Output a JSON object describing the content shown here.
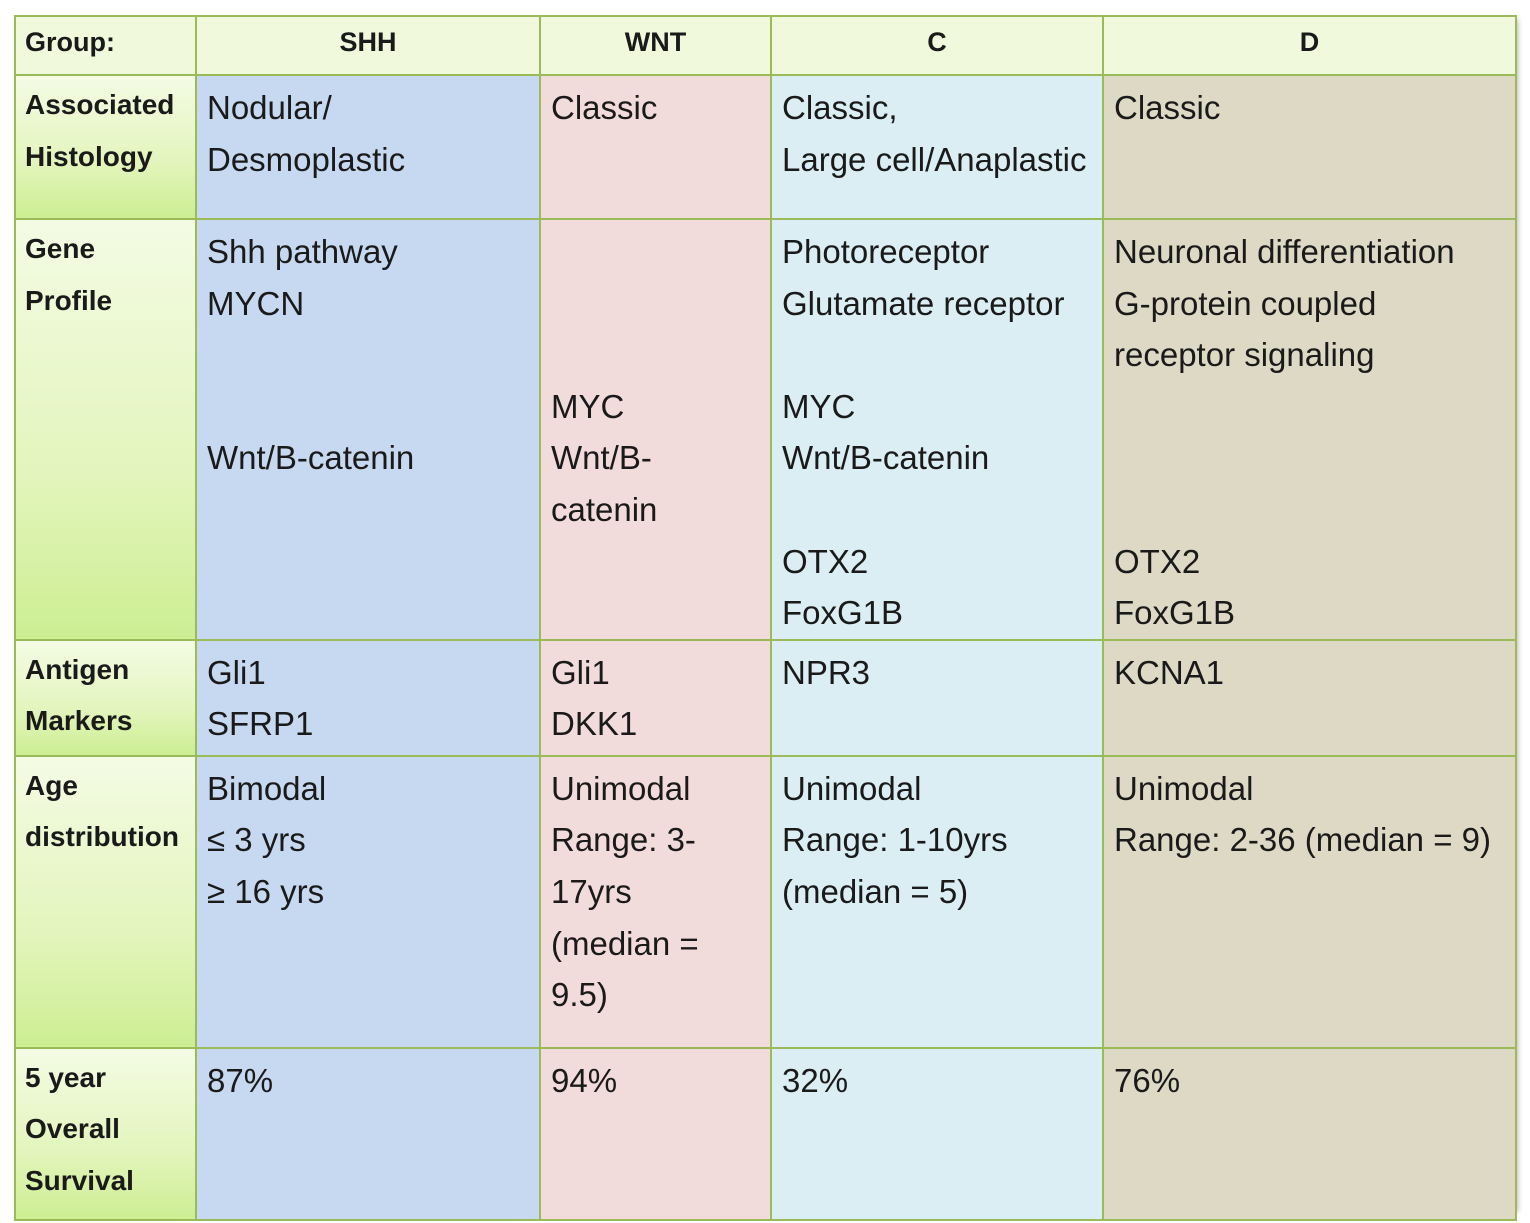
{
  "header": {
    "group_label": "Group:",
    "groups": [
      "SHH",
      "WNT",
      "C",
      "D"
    ]
  },
  "rows": [
    {
      "label": [
        "Associated",
        "Histology"
      ],
      "cells": [
        [
          "Nodular/",
          "Desmoplastic"
        ],
        [
          "Classic"
        ],
        [
          "Classic,",
          "Large cell/Anaplastic"
        ],
        [
          "Classic"
        ]
      ]
    },
    {
      "label": [
        "Gene",
        "Profile"
      ],
      "cells": [
        [
          "Shh pathway",
          "MYCN",
          "",
          "",
          "Wnt/B-catenin"
        ],
        [
          "",
          "",
          "",
          "MYC",
          "Wnt/B-",
          "catenin"
        ],
        [
          "Photoreceptor",
          "Glutamate receptor",
          "",
          "MYC",
          "Wnt/B-catenin",
          "",
          "OTX2",
          "FoxG1B"
        ],
        [
          "Neuronal differentiation",
          "G-protein coupled",
          "receptor signaling",
          "",
          "",
          "",
          "OTX2",
          "FoxG1B"
        ]
      ]
    },
    {
      "label": [
        "Antigen",
        "Markers"
      ],
      "cells": [
        [
          "Gli1",
          "SFRP1"
        ],
        [
          "Gli1",
          "DKK1"
        ],
        [
          "NPR3"
        ],
        [
          "KCNA1"
        ]
      ]
    },
    {
      "label": [
        "Age",
        "distribution"
      ],
      "cells": [
        [
          "Bimodal",
          "≤ 3 yrs",
          "≥ 16 yrs"
        ],
        [
          "Unimodal",
          "Range: 3-",
          "17yrs",
          "(median =",
          "9.5)"
        ],
        [
          "Unimodal",
          "Range: 1-10yrs",
          "(median = 5)"
        ],
        [
          "Unimodal",
          "Range: 2-36 (median = 9)"
        ]
      ]
    },
    {
      "label": [
        "5 year",
        "Overall",
        "Survival"
      ],
      "cells": [
        [
          "87%"
        ],
        [
          "94%"
        ],
        [
          "32%"
        ],
        [
          "76%"
        ]
      ]
    }
  ],
  "colors": {
    "border": "#9bbb59",
    "shh": "#c6d9f0",
    "wnt": "#f2dcdb",
    "c": "#daeef3",
    "d": "#ddd9c4",
    "label_column": "#e3f5bd"
  }
}
